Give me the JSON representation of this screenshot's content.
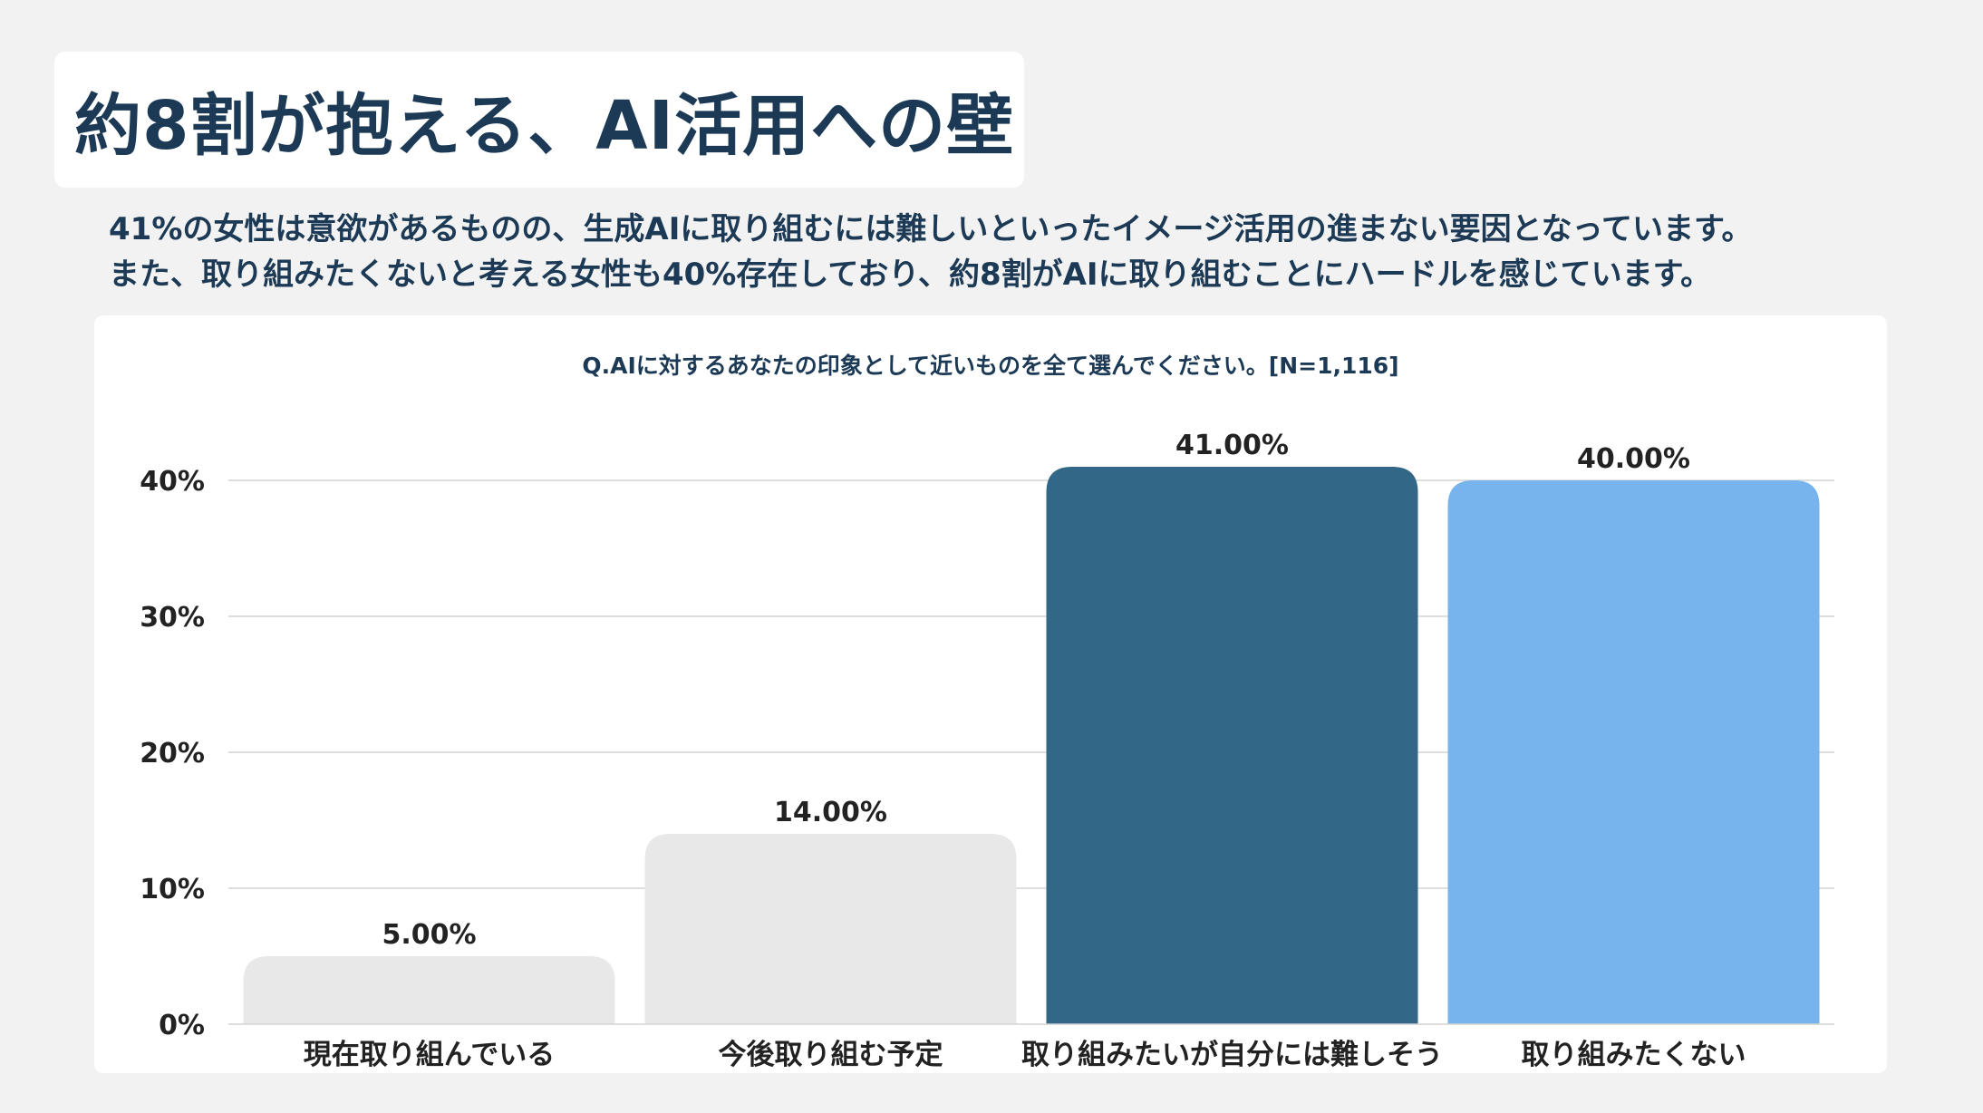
{
  "header": {
    "title": "約8割が抱える、AI活用への壁",
    "subtitle_lines": [
      "41%の女性は意欲があるものの、生成AIに取り組むには難しいといったイメージ活用の進まない要因となっています。",
      "また、取り組みたくないと考える女性も40%存在しており、約8割がAIに取り組むことにハードルを感じています。"
    ]
  },
  "chart_data": {
    "type": "bar",
    "title": "Q.AIに対するあなたの印象として近いものを全て選んでください。[N=1,116]",
    "categories": [
      "現在取り組んでいる",
      "今後取り組む予定",
      "取り組みたいが自分には難しそう",
      "取り組みたくない"
    ],
    "values": [
      5.0,
      14.0,
      41.0,
      40.0
    ],
    "data_labels": [
      "5.00%",
      "14.00%",
      "41.00%",
      "40.00%"
    ],
    "bar_colors": [
      "#e8e8e8",
      "#e8e8e8",
      "#336788",
      "#77b3ec"
    ],
    "yticks": [
      0,
      10,
      20,
      30,
      40
    ],
    "ytick_labels": [
      "0%",
      "10%",
      "20%",
      "30%",
      "40%"
    ],
    "ylim": [
      0,
      40
    ],
    "xlabel": "",
    "ylabel": "",
    "grid": true,
    "legend": "none"
  },
  "colors": {
    "background": "#f2f2f2",
    "card": "#ffffff",
    "text_primary": "#1c3a55",
    "axis_text": "#222222",
    "gridline": "#d4d4d4"
  }
}
